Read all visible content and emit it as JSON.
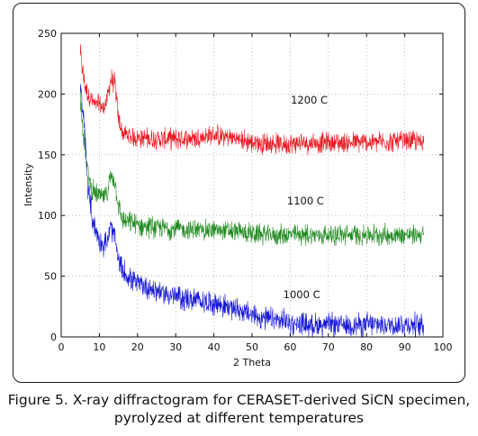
{
  "chart_data": {
    "type": "line",
    "xlabel": "2 Theta",
    "ylabel": "Intensity",
    "xlim": [
      0,
      100
    ],
    "ylim": [
      0,
      250
    ],
    "xticks": [
      0,
      10,
      20,
      30,
      40,
      50,
      60,
      70,
      80,
      90,
      100
    ],
    "yticks": [
      0,
      50,
      100,
      150,
      200,
      250
    ],
    "grid": "dotted",
    "series": [
      {
        "name": "1200 C",
        "color": "#e8141c",
        "x": [
          5,
          6,
          7,
          8,
          9,
          10,
          11,
          12,
          13,
          14,
          15,
          16,
          18,
          20,
          25,
          30,
          35,
          40,
          45,
          50,
          55,
          60,
          65,
          70,
          75,
          80,
          85,
          90,
          95
        ],
        "y": [
          235,
          210,
          200,
          195,
          190,
          192,
          188,
          195,
          212,
          210,
          180,
          168,
          165,
          164,
          163,
          163,
          164,
          166,
          164,
          160,
          159,
          159,
          160,
          160,
          160,
          160,
          161,
          161,
          161
        ]
      },
      {
        "name": "1100 C",
        "color": "#1f8a1f",
        "x": [
          5,
          6,
          7,
          8,
          9,
          10,
          11,
          12,
          13,
          14,
          15,
          16,
          18,
          20,
          25,
          30,
          35,
          40,
          45,
          50,
          55,
          60,
          65,
          70,
          75,
          80,
          85,
          90,
          95
        ],
        "y": [
          200,
          160,
          135,
          122,
          118,
          116,
          115,
          118,
          133,
          130,
          108,
          96,
          94,
          92,
          90,
          89,
          88,
          88,
          87,
          85,
          84,
          84,
          84,
          84,
          84,
          84,
          84,
          84,
          84
        ]
      },
      {
        "name": "1000 C",
        "color": "#1414d8",
        "x": [
          5,
          6,
          7,
          8,
          9,
          10,
          11,
          12,
          13,
          14,
          15,
          16,
          18,
          20,
          25,
          30,
          35,
          40,
          45,
          50,
          55,
          60,
          65,
          70,
          75,
          80,
          85,
          90,
          95
        ],
        "y": [
          205,
          175,
          125,
          100,
          88,
          80,
          75,
          78,
          90,
          82,
          62,
          55,
          48,
          44,
          38,
          33,
          30,
          28,
          24,
          18,
          14,
          12,
          10,
          10,
          10,
          10,
          10,
          10,
          10
        ]
      }
    ],
    "annotations": [
      {
        "text": "1200 C",
        "x": 65,
        "y": 192
      },
      {
        "text": "1100 C",
        "x": 64,
        "y": 109
      },
      {
        "text": "1000 C",
        "x": 63,
        "y": 32
      }
    ],
    "caption": [
      "Figure 5. X-ray diffractogram for CERASET-derived SiCN specimen,",
      "pyrolyzed at different temperatures"
    ]
  }
}
